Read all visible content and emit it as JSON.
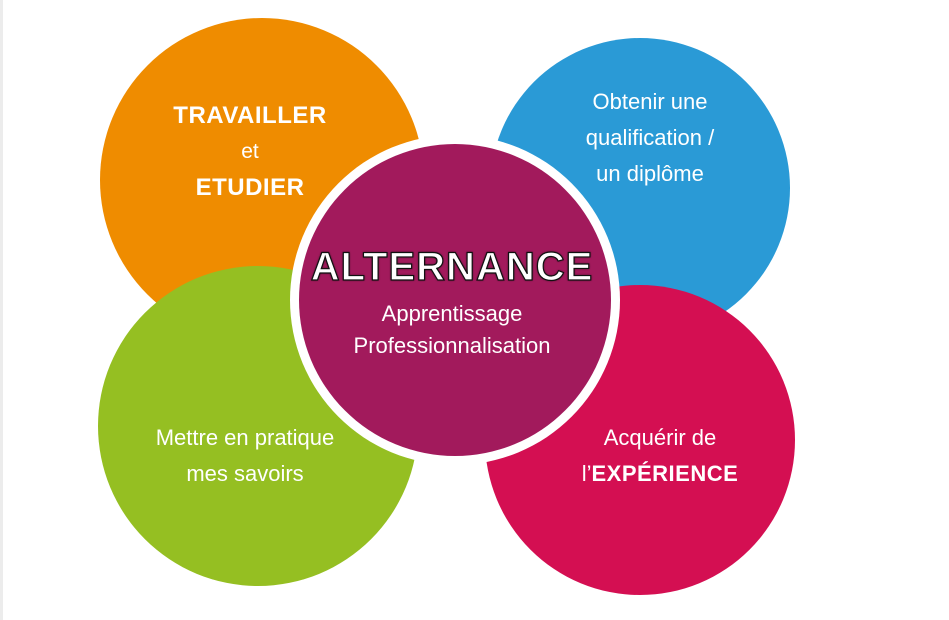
{
  "colors": {
    "orange": "#ef8c00",
    "blue": "#2a9ad6",
    "green": "#95bf22",
    "pink": "#d40f52",
    "center": "#a21a5c",
    "ring": "#ffffff",
    "background": "#ffffff"
  },
  "circles": {
    "top_left": {
      "line1": "TRAVAILLER",
      "line2": "et",
      "line3": "ETUDIER"
    },
    "top_right": {
      "line1": "Obtenir une",
      "line2": "qualification /",
      "line3": "un diplôme"
    },
    "bottom_left": {
      "line1": "Mettre en pratique",
      "line2": "mes savoirs"
    },
    "bottom_right": {
      "line1": "Acquérir de",
      "line2_prefix": "l’",
      "line2_bold": "EXPÉRIENCE"
    },
    "center": {
      "title": "ALTERNANCE",
      "line1": "Apprentissage",
      "line2": "Professionnalisation"
    }
  }
}
